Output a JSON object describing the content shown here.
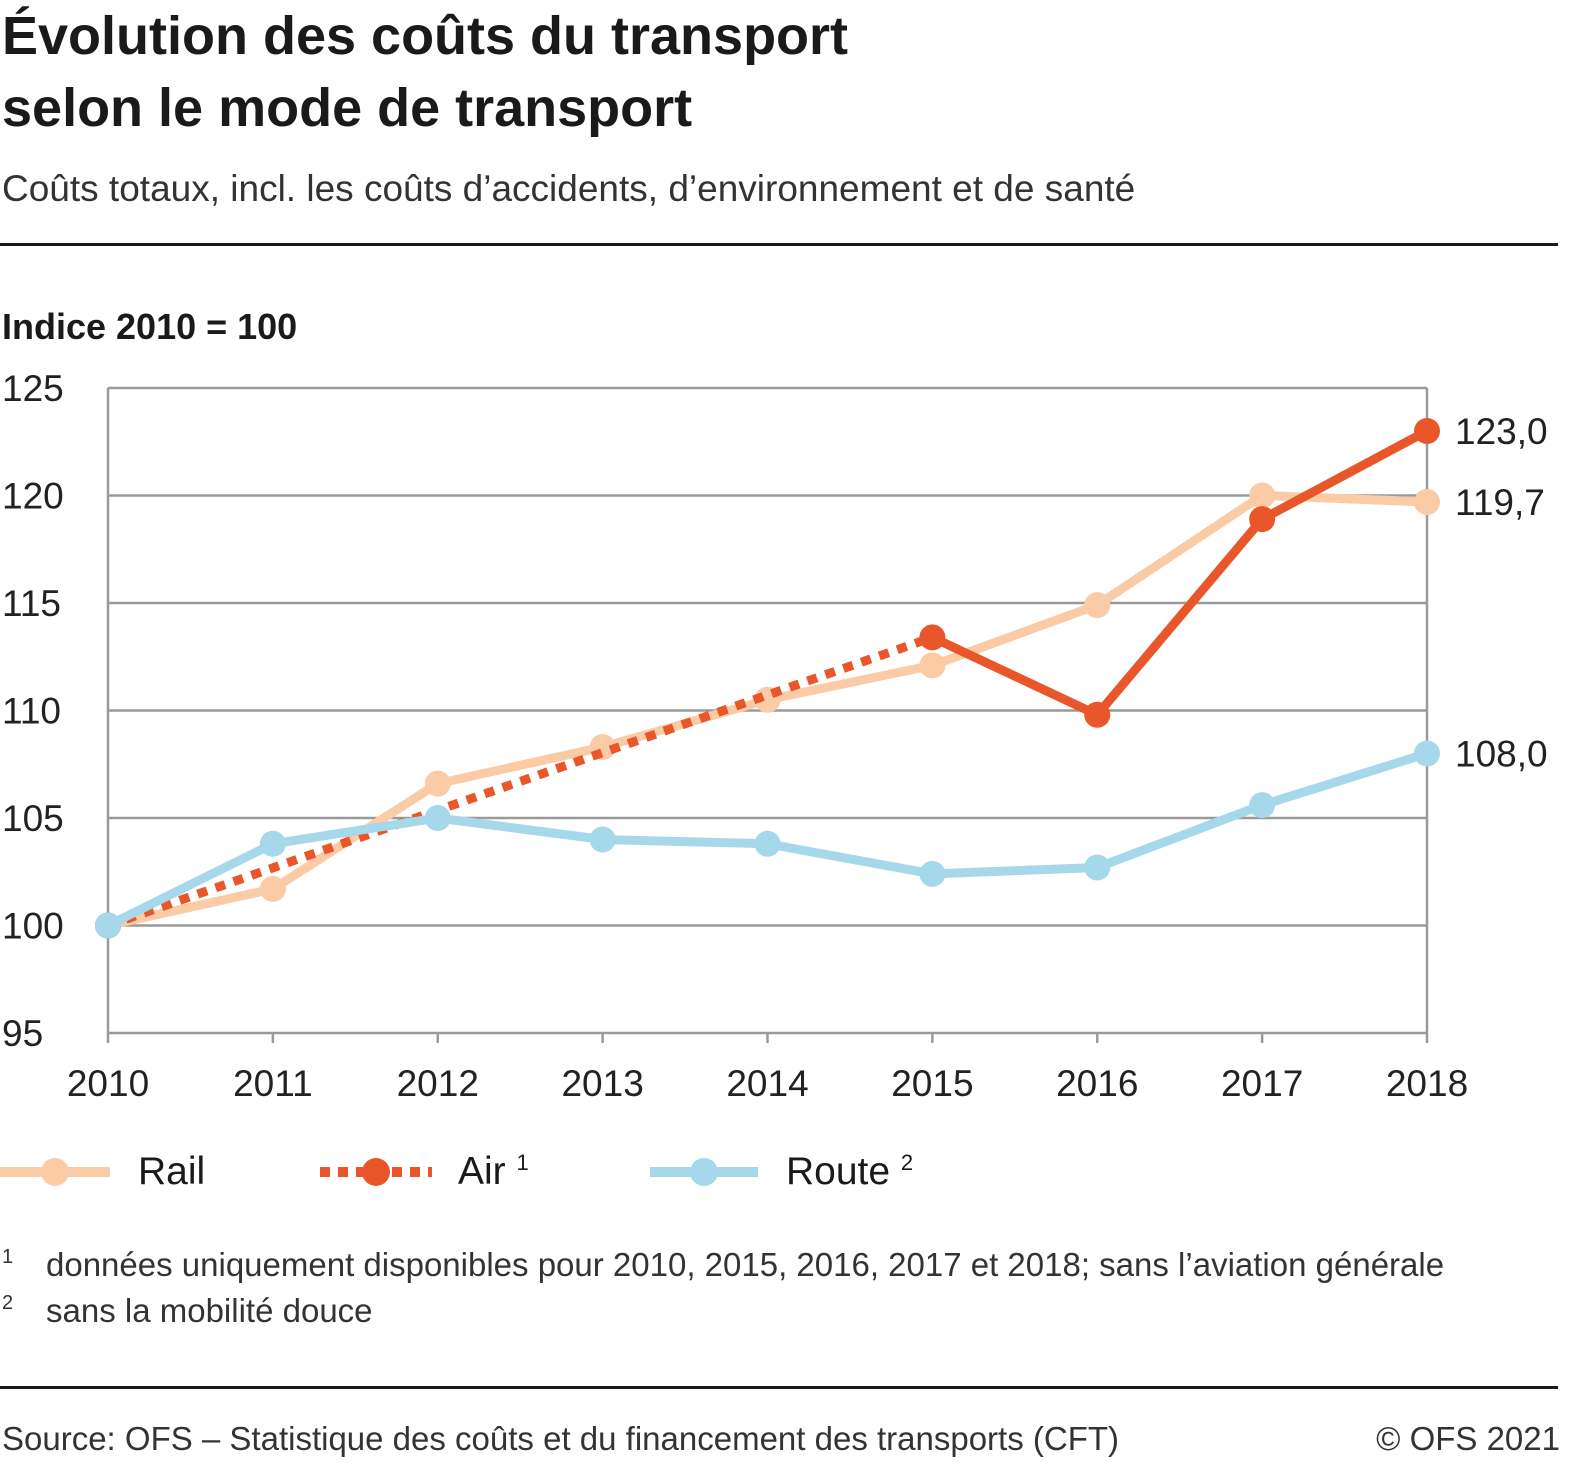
{
  "title_line1": "Évolution des coûts du transport",
  "title_line2": "selon le mode de transport",
  "subtitle": "Coûts totaux, incl. les coûts d’accidents, d’environnement et de santé",
  "unit_label": "Indice 2010 = 100",
  "chart_data": {
    "type": "line",
    "title": "Évolution des coûts du transport selon le mode de transport",
    "ylabel": "Indice 2010 = 100",
    "x": [
      2010,
      2011,
      2012,
      2013,
      2014,
      2015,
      2016,
      2017,
      2018
    ],
    "x_ticks": [
      "2010",
      "2011",
      "2012",
      "2013",
      "2014",
      "2015",
      "2016",
      "2017",
      "2018"
    ],
    "ylim": [
      95,
      125
    ],
    "y_ticks": [
      "95",
      "100",
      "105",
      "110",
      "115",
      "120",
      "125"
    ],
    "grid": true,
    "legend_position": "bottom",
    "series": [
      {
        "name": "Rail",
        "color": "#FBCBA6",
        "values": [
          100,
          101.7,
          106.6,
          108.3,
          110.5,
          112.1,
          114.9,
          120.0,
          119.7
        ],
        "end_label": "119,7"
      },
      {
        "name": "Air",
        "sup": "1",
        "color": "#E8562A",
        "values": [
          100,
          null,
          null,
          null,
          null,
          113.4,
          109.8,
          118.9,
          123.0
        ],
        "interpolated_dotted": "2010-2015",
        "end_label": "123,0"
      },
      {
        "name": "Route",
        "sup": "2",
        "color": "#A6D8EC",
        "values": [
          100,
          103.8,
          105.0,
          104.0,
          103.8,
          102.4,
          102.7,
          105.6,
          108.0
        ],
        "end_label": "108,0"
      }
    ]
  },
  "footnotes": [
    {
      "num": "1",
      "text": "données uniquement disponibles pour 2010, 2015, 2016,  2017 et 2018; sans l’aviation générale"
    },
    {
      "num": "2",
      "text": "sans la mobilité douce"
    }
  ],
  "source": "Source: OFS – Statistique des coûts et du financement des transports (CFT)",
  "copyright": "© OFS 2021"
}
